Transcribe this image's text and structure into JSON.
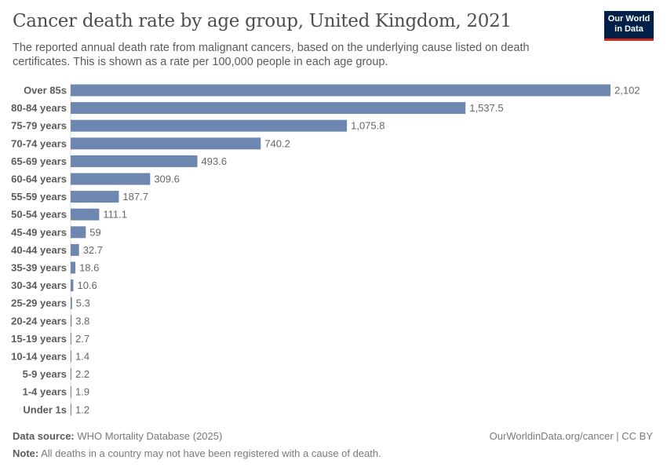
{
  "header": {
    "title": "Cancer death rate by age group, United Kingdom, 2021",
    "subtitle": "The reported annual death rate from malignant cancers, based on the underlying cause listed on death certificates. This is shown as a rate per 100,000 people in each age group.",
    "logo": "Our World in Data"
  },
  "chart_data": {
    "type": "bar",
    "orientation": "horizontal",
    "categories": [
      "Over 85s",
      "80-84 years",
      "75-79 years",
      "70-74 years",
      "65-69 years",
      "60-64 years",
      "55-59 years",
      "50-54 years",
      "45-49 years",
      "40-44 years",
      "35-39 years",
      "30-34 years",
      "25-29 years",
      "20-24 years",
      "15-19 years",
      "10-14 years",
      "5-9 years",
      "1-4 years",
      "Under 1s"
    ],
    "values": [
      2102,
      1537.5,
      1075.8,
      740.2,
      493.6,
      309.6,
      187.7,
      111.1,
      59,
      32.7,
      18.6,
      10.6,
      5.3,
      3.8,
      2.7,
      1.4,
      2.2,
      1.9,
      1.2
    ],
    "data_labels": [
      "2,102",
      "1,537.5",
      "1,075.8",
      "740.2",
      "493.6",
      "309.6",
      "187.7",
      "111.1",
      "59",
      "32.7",
      "18.6",
      "10.6",
      "5.3",
      "3.8",
      "2.7",
      "1.4",
      "2.2",
      "1.9",
      "1.2"
    ],
    "xlim": [
      0,
      2102
    ],
    "grid": false,
    "color": "#6d87b0"
  },
  "footer": {
    "source_label": "Data source:",
    "source": "WHO Mortality Database (2025)",
    "note_label": "Note:",
    "note": "All deaths in a country may not have been registered with a cause of death.",
    "license": "OurWorldinData.org/cancer | CC BY"
  }
}
